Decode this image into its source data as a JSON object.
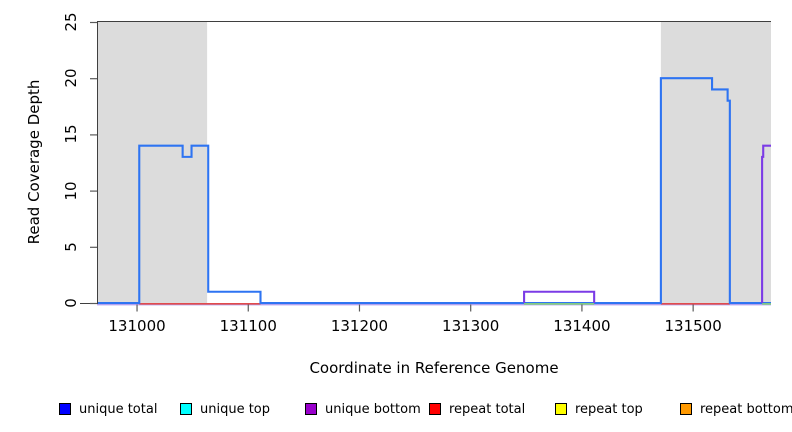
{
  "figure": {
    "ylabel": "Read Coverage Depth",
    "xlabel": "Coordinate in Reference Genome",
    "colors": {
      "box_line": "#3f3f3f",
      "tick_line": "#5a5a5a",
      "repeat_region_fill": "#dcdcdc",
      "text": "#000000"
    }
  },
  "chart_data": {
    "type": "line",
    "title": "",
    "xlabel": "Coordinate in Reference Genome",
    "ylabel": "Read Coverage Depth",
    "xlim": [
      130964,
      131570
    ],
    "ylim": [
      0,
      25
    ],
    "x_ticks": [
      131000,
      131100,
      131200,
      131300,
      131400,
      131500
    ],
    "y_ticks": [
      0,
      5,
      10,
      15,
      20,
      25
    ],
    "grid": false,
    "legend_position": "bottom",
    "repeat_regions": [
      [
        130964,
        131063
      ],
      [
        131471,
        131570
      ]
    ],
    "series": [
      {
        "name": "unique total",
        "legend_color": "#0000FF",
        "line_color": "#2E74F2",
        "draw": "full",
        "steps": [
          [
            130964,
            0
          ],
          [
            131002,
            14
          ],
          [
            131041,
            13
          ],
          [
            131049,
            14
          ],
          [
            131064,
            1
          ],
          [
            131111,
            0
          ],
          [
            131471,
            20
          ],
          [
            131517,
            19
          ],
          [
            131531,
            18
          ],
          [
            131533,
            0
          ],
          [
            131570,
            0
          ]
        ]
      },
      {
        "name": "unique top",
        "legend_color": "#00FFFF",
        "line_color": "#00FFFF",
        "draw": "none",
        "steps": [
          [
            130964,
            0
          ],
          [
            131570,
            0
          ]
        ]
      },
      {
        "name": "unique bottom",
        "legend_color": "#9900CC",
        "line_color": "#7B3BE6",
        "draw": "elevated",
        "steps": [
          [
            130964,
            0
          ],
          [
            131348,
            1
          ],
          [
            131411,
            0
          ],
          [
            131562,
            13
          ],
          [
            131563,
            14
          ],
          [
            131570,
            14
          ]
        ]
      },
      {
        "name": "repeat total",
        "legend_color": "#FF0000",
        "line_color": "#E14B4B",
        "draw": "baseline_segments",
        "steps": [
          [
            130964,
            0
          ],
          [
            131570,
            0
          ]
        ],
        "visible_baseline_segments": [
          [
            131002,
            131111
          ],
          [
            131471,
            131533
          ]
        ]
      },
      {
        "name": "repeat top",
        "legend_color": "#FFFF00",
        "line_color": "#FFFF00",
        "draw": "none",
        "steps": [
          [
            130964,
            0
          ],
          [
            131570,
            0
          ]
        ]
      },
      {
        "name": "repeat bottom",
        "legend_color": "#FF9900",
        "line_color": "#FF9900",
        "draw": "none",
        "steps": [
          [
            130964,
            0
          ],
          [
            131570,
            0
          ]
        ]
      }
    ],
    "baseline_overlap": {
      "color": "#82CC82",
      "segments": [
        [
          131348,
          131411
        ],
        [
          131562,
          131570
        ]
      ]
    },
    "baseline_under_color": "#B3A0EE"
  }
}
